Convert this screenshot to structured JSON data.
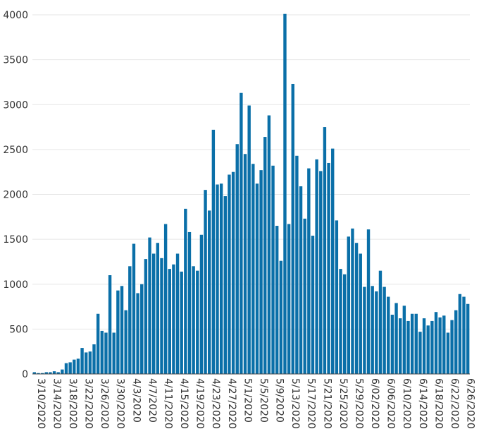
{
  "chart_data": {
    "type": "bar",
    "bar_color": "#0a6fa8",
    "ylim": [
      0,
      4000
    ],
    "y_ticks": [
      0,
      500,
      1000,
      1500,
      2000,
      2500,
      3000,
      3500,
      4000
    ],
    "x_tick_labels": [
      "3/10/2020",
      "3/14/2020",
      "3/18/2020",
      "3/22/2020",
      "3/26/2020",
      "3/30/2020",
      "4/3/2020",
      "4/7/2020",
      "4/11/2020",
      "4/15/2020",
      "4/19/2020",
      "4/23/2020",
      "4/27/2020",
      "5/1/2020",
      "5/5/2020",
      "5/9/2020",
      "5/13/2020",
      "5/17/2020",
      "5/21/2020",
      "5/25/2020",
      "5/29/2020",
      "6/02/2020",
      "6/06/2020",
      "6/10/2020",
      "6/14/2020",
      "6/18/2020",
      "6/22/2020",
      "6/26/2020"
    ],
    "x_start": "2020-03-10",
    "values": [
      20,
      10,
      10,
      20,
      20,
      30,
      20,
      50,
      120,
      130,
      160,
      170,
      290,
      240,
      250,
      330,
      670,
      480,
      460,
      1100,
      460,
      930,
      980,
      710,
      1200,
      1450,
      900,
      1000,
      1280,
      1520,
      1340,
      1460,
      1290,
      1670,
      1170,
      1220,
      1340,
      1140,
      1840,
      1580,
      1200,
      1150,
      1550,
      2050,
      1820,
      2720,
      2110,
      2120,
      1980,
      2220,
      2250,
      2560,
      3130,
      2450,
      2990,
      2340,
      2120,
      2270,
      2640,
      2880,
      2320,
      1650,
      1260,
      4010,
      1670,
      3230,
      2430,
      2090,
      1730,
      2290,
      1540,
      2390,
      2260,
      2750,
      2350,
      2510,
      1710,
      1170,
      1110,
      1530,
      1620,
      1460,
      1340,
      970,
      1610,
      980,
      920,
      1150,
      970,
      860,
      660,
      790,
      620,
      760,
      590,
      670,
      670,
      470,
      620,
      540,
      590,
      690,
      630,
      650,
      460,
      600,
      710,
      890,
      860,
      780
    ]
  }
}
